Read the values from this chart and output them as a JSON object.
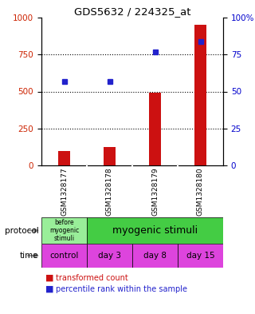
{
  "title": "GDS5632 / 224325_at",
  "samples": [
    "GSM1328177",
    "GSM1328178",
    "GSM1328179",
    "GSM1328180"
  ],
  "transformed_counts": [
    100,
    125,
    490,
    950
  ],
  "percentile_ranks": [
    57,
    57,
    77,
    84
  ],
  "ylim_left": [
    0,
    1000
  ],
  "ylim_right": [
    0,
    100
  ],
  "yticks_left": [
    0,
    250,
    500,
    750,
    1000
  ],
  "yticks_right": [
    0,
    25,
    50,
    75,
    100
  ],
  "ytick_labels_right": [
    "0",
    "25",
    "50",
    "75",
    "100%"
  ],
  "bar_color": "#cc1111",
  "dot_color": "#2222cc",
  "protocol_label_0": "before\nmyogenic\nstimuli",
  "protocol_label_1": "myogenic stimuli",
  "protocol_color_0": "#99ee99",
  "protocol_color_1": "#44cc44",
  "time_labels": [
    "control",
    "day 3",
    "day 8",
    "day 15"
  ],
  "time_color": "#dd44dd",
  "sample_bg": "#cccccc",
  "bg_color": "#ffffff",
  "label_color_red": "#cc2200",
  "label_color_blue": "#0000cc",
  "legend_red_label": "transformed count",
  "legend_blue_label": "percentile rank within the sample",
  "gridline_color": "#555555",
  "border_color": "#000000"
}
